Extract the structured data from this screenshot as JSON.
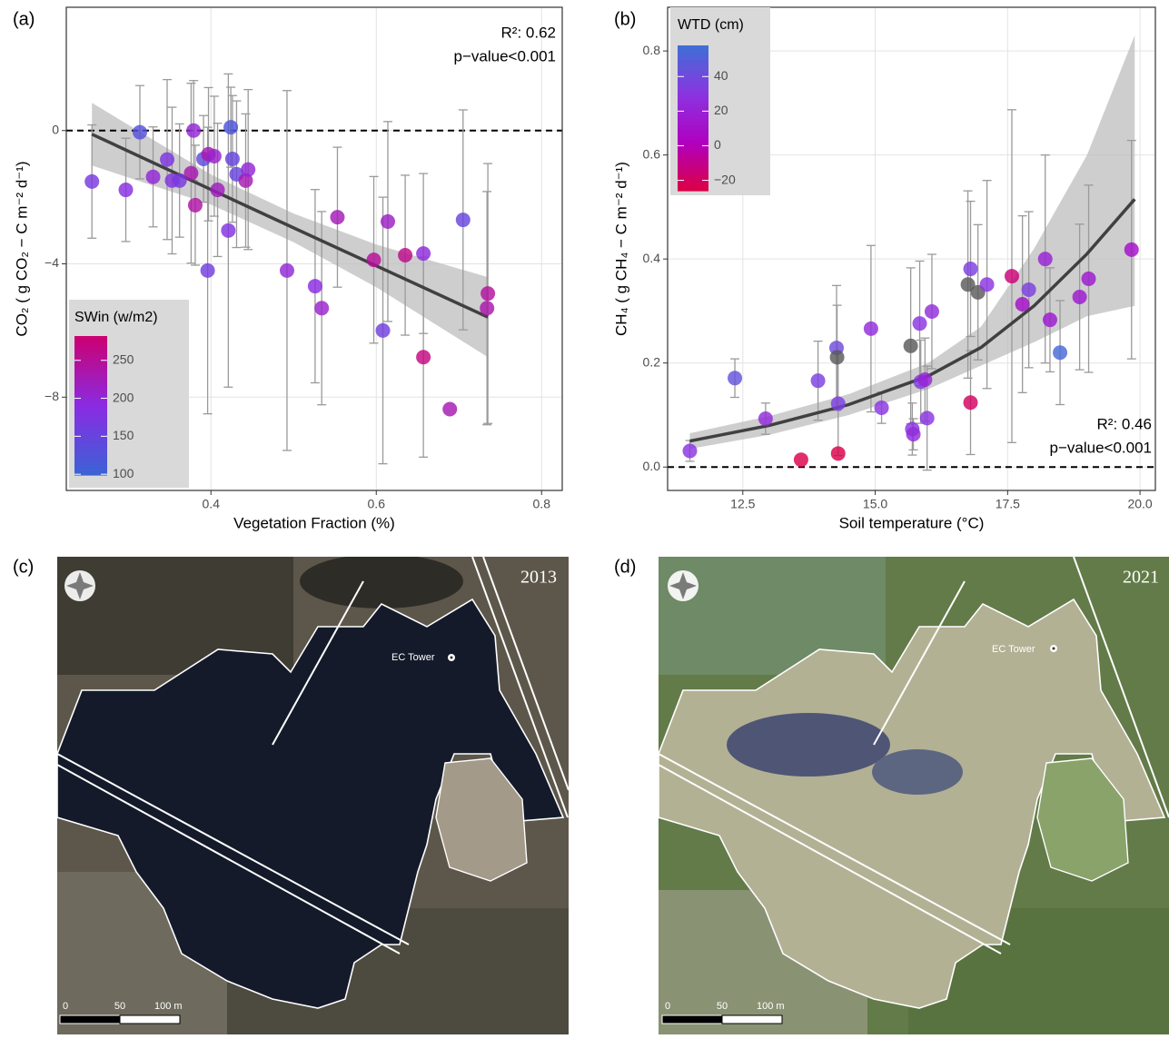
{
  "chart_data": [
    {
      "type": "scatter",
      "panel_label": "(a)",
      "x_label": "Vegetation Fraction (%)",
      "y_label": "CO₂ ( g CO₂ − C m⁻² d⁻¹)",
      "x": [
        0.256,
        0.297,
        0.314,
        0.33,
        0.347,
        0.353,
        0.362,
        0.376,
        0.379,
        0.381,
        0.391,
        0.396,
        0.397,
        0.404,
        0.408,
        0.421,
        0.424,
        0.426,
        0.431,
        0.442,
        0.445,
        0.492,
        0.526,
        0.534,
        0.553,
        0.597,
        0.608,
        0.614,
        0.635,
        0.657,
        0.657,
        0.689,
        0.705,
        0.734,
        0.735
      ],
      "values": [
        -1.53,
        -1.78,
        -0.05,
        -1.39,
        -0.87,
        -1.5,
        -1.5,
        -1.28,
        0,
        -2.24,
        -0.85,
        -4.2,
        -0.71,
        -0.77,
        -1.78,
        -3.0,
        0.1,
        -0.85,
        -1.31,
        -1.5,
        -1.17,
        -4.2,
        -4.67,
        -5.33,
        -2.6,
        -3.88,
        -6.0,
        -2.73,
        -3.74,
        -6.8,
        -3.69,
        -8.36,
        -2.68,
        -5.33,
        -4.89
      ],
      "errors": [
        1.7,
        1.55,
        1.4,
        1.5,
        2.4,
        2.2,
        1.7,
        2.7,
        1.5,
        1.8,
        1.3,
        4.3,
        2.0,
        1.8,
        2.0,
        4.7,
        1.2,
        1.9,
        2.2,
        2.0,
        2.4,
        5.4,
        2.9,
        2.9,
        2.1,
        2.5,
        4.0,
        3.0,
        2.4,
        3.0,
        2.4,
        null,
        3.3,
        3.5,
        3.9
      ],
      "color_values": [
        170,
        185,
        130,
        200,
        175,
        180,
        170,
        230,
        200,
        240,
        140,
        160,
        230,
        210,
        220,
        180,
        120,
        150,
        150,
        230,
        200,
        200,
        190,
        210,
        225,
        250,
        160,
        215,
        260,
        270,
        195,
        230,
        150,
        235,
        245
      ],
      "colorbar": {
        "title": "SWin (w/m2)",
        "lim": [
          99,
          282
        ],
        "ticks": [
          100,
          150,
          200,
          250
        ],
        "colors": [
          "#3b63d6",
          "#8a2be2",
          "#cc0070"
        ]
      },
      "fit": {
        "x": [
          0.256,
          0.4,
          0.5,
          0.6,
          0.735
        ],
        "y": [
          -0.11,
          -1.77,
          -2.92,
          -4.06,
          -5.6
        ],
        "lower": [
          -1.05,
          -2.22,
          -3.35,
          -4.7,
          -6.8
        ],
        "upper": [
          0.83,
          -1.32,
          -2.49,
          -3.42,
          -4.4
        ]
      },
      "annotations": [
        "R²: 0.62",
        "p−value<0.001"
      ],
      "hline": 0,
      "xlim": [
        0.225,
        0.825
      ],
      "ylim": [
        -10.8,
        3.7
      ],
      "xticks": [
        0.4,
        0.6,
        0.8
      ],
      "yticks": [
        {
          "value": -8,
          "label": "−8"
        },
        {
          "value": -4,
          "label": "−4"
        },
        0
      ],
      "grid": true,
      "error_color": "#9a9a9a",
      "fit_color": "#404040",
      "band_color": "#bdbdbd",
      "na_color": "#5a5a5a"
    },
    {
      "type": "scatter",
      "panel_label": "(b)",
      "x_label": "Soil temperature (°C)",
      "y_label": "CH₄ ( g CH₄ − C m⁻² d⁻¹)",
      "x": [
        11.5,
        12.35,
        12.93,
        13.6,
        13.92,
        14.27,
        14.28,
        14.3,
        14.3,
        14.92,
        15.12,
        15.67,
        15.7,
        15.72,
        15.84,
        15.86,
        15.94,
        15.98,
        16.07,
        16.75,
        16.8,
        16.8,
        16.94,
        17.11,
        17.58,
        17.78,
        17.9,
        18.21,
        18.3,
        18.49,
        18.86,
        19.03,
        19.84
      ],
      "values": [
        0.031,
        0.171,
        0.093,
        0.014,
        0.166,
        0.229,
        0.211,
        0.122,
        0.026,
        0.266,
        0.114,
        0.233,
        0.073,
        0.063,
        0.276,
        0.164,
        0.168,
        0.094,
        0.299,
        0.351,
        0.381,
        0.124,
        0.336,
        0.351,
        0.367,
        0.313,
        0.341,
        0.4,
        0.283,
        0.22,
        0.327,
        0.362,
        0.418
      ],
      "errors": [
        0.02,
        0.037,
        0.03,
        null,
        0.076,
        0.12,
        0.1,
        0.1,
        null,
        0.16,
        0.03,
        0.15,
        0.05,
        0.03,
        0.12,
        0.08,
        0.08,
        0.1,
        0.11,
        0.18,
        0.13,
        0.1,
        0.13,
        0.2,
        0.32,
        0.17,
        0.15,
        0.2,
        0.1,
        0.1,
        0.14,
        0.18,
        0.21
      ],
      "color_values": [
        30,
        45,
        25,
        -25,
        35,
        40,
        null,
        35,
        -25,
        25,
        30,
        null,
        30,
        25,
        30,
        35,
        20,
        30,
        25,
        null,
        35,
        -20,
        null,
        30,
        -15,
        10,
        35,
        20,
        15,
        55,
        15,
        15,
        10
      ],
      "colorbar": {
        "title": "WTD (cm)",
        "lim": [
          -26,
          58
        ],
        "ticks": [
          {
            "value": -20,
            "label": "−20"
          },
          0,
          20,
          40
        ],
        "colors": [
          "#dc0045",
          "#b000c0",
          "#8a35e0",
          "#3f6fd6"
        ]
      },
      "fit": {
        "x": [
          11.5,
          13,
          14.5,
          16,
          17,
          18,
          19,
          19.9
        ],
        "y": [
          0.05,
          0.08,
          0.12,
          0.175,
          0.23,
          0.31,
          0.41,
          0.515
        ],
        "lower": [
          0.035,
          0.062,
          0.1,
          0.15,
          0.195,
          0.24,
          0.29,
          0.31
        ],
        "upper": [
          0.065,
          0.098,
          0.14,
          0.2,
          0.27,
          0.42,
          0.6,
          0.83
        ]
      },
      "annotations": [
        "R²: 0.46",
        "p−value<0.001"
      ],
      "hline": 0,
      "xlim": [
        11.08,
        20.29
      ],
      "ylim": [
        -0.045,
        0.884
      ],
      "xticks": [
        12.5,
        {
          "value": 15,
          "label": "15.0"
        },
        17.5,
        {
          "value": 20,
          "label": "20.0"
        }
      ],
      "yticks": [
        {
          "value": 0,
          "label": "0.0"
        },
        0.2,
        0.4,
        0.6,
        0.8
      ],
      "grid": true,
      "error_color": "#9a9a9a",
      "fit_color": "#404040",
      "band_color": "#bdbdbd",
      "na_color": "#5a5a5a"
    }
  ],
  "maps": [
    {
      "label": "(c)",
      "year": "2013",
      "tower": "EC Tower",
      "scale_labels": [
        "0",
        "50",
        "100 m"
      ]
    },
    {
      "label": "(d)",
      "year": "2021",
      "tower": "EC Tower",
      "scale_labels": [
        "0",
        "50",
        "100 m"
      ]
    }
  ]
}
